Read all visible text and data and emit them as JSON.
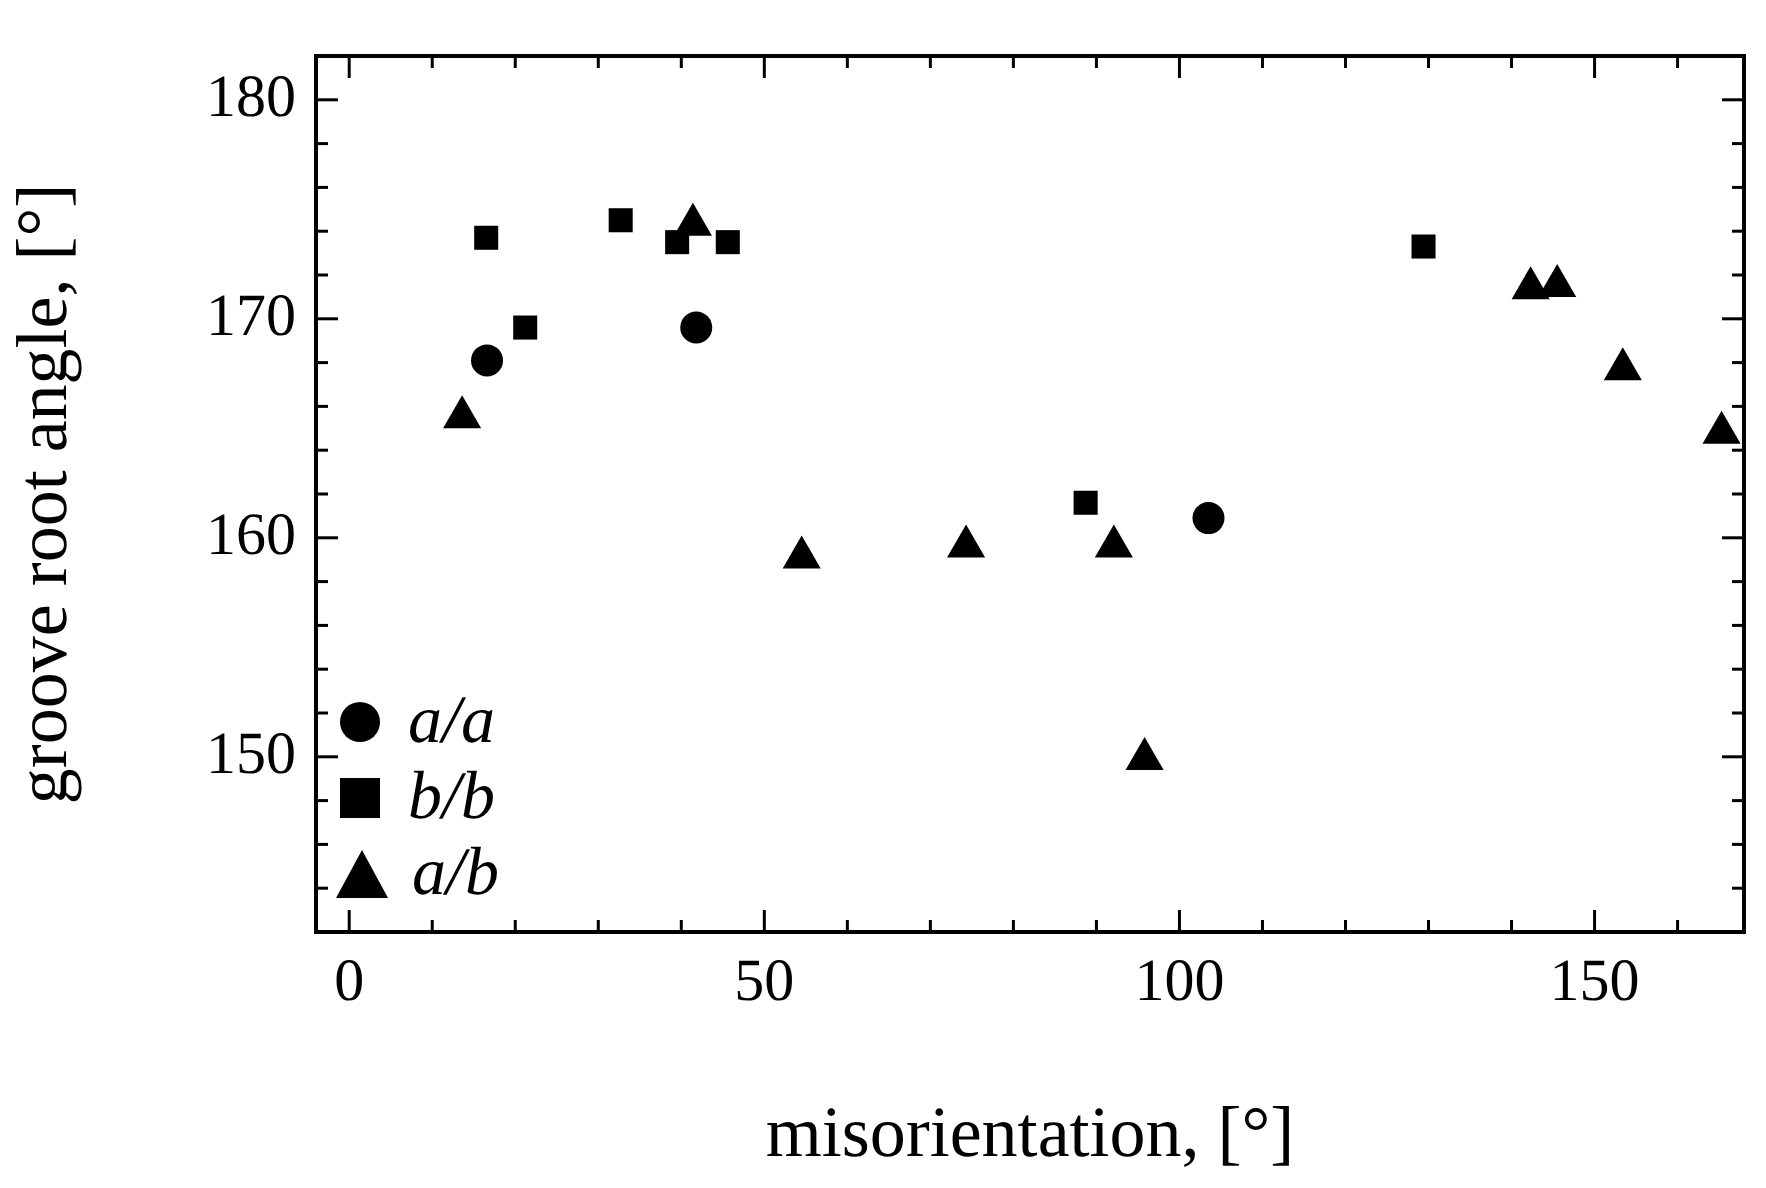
{
  "chart_data": {
    "type": "scatter",
    "xlabel": "misorientation, [°]",
    "ylabel": "groove root angle, [°]",
    "xlim": [
      -4,
      168
    ],
    "ylim": [
      142,
      182
    ],
    "xticks": [
      0,
      {
        "value": 10,
        "label": null
      },
      {
        "value": 20,
        "label": null
      },
      {
        "value": 30,
        "label": null
      },
      {
        "value": 40,
        "label": null
      },
      50,
      {
        "value": 60,
        "label": null
      },
      {
        "value": 70,
        "label": null
      },
      {
        "value": 80,
        "label": null
      },
      {
        "value": 90,
        "label": null
      },
      100,
      {
        "value": 110,
        "label": null
      },
      {
        "value": 120,
        "label": null
      },
      {
        "value": 130,
        "label": null
      },
      {
        "value": 140,
        "label": null
      },
      150,
      {
        "value": 160,
        "label": null
      }
    ],
    "yticks": [
      {
        "value": 144,
        "label": null
      },
      {
        "value": 146,
        "label": null
      },
      {
        "value": 148,
        "label": null
      },
      150,
      {
        "value": 152,
        "label": null
      },
      {
        "value": 154,
        "label": null
      },
      {
        "value": 156,
        "label": null
      },
      {
        "value": 158,
        "label": null
      },
      160,
      {
        "value": 162,
        "label": null
      },
      {
        "value": 164,
        "label": null
      },
      {
        "value": 166,
        "label": null
      },
      {
        "value": 168,
        "label": null
      },
      170,
      {
        "value": 172,
        "label": null
      },
      {
        "value": 174,
        "label": null
      },
      {
        "value": 176,
        "label": null
      },
      {
        "value": 178,
        "label": null
      },
      180
    ],
    "grid": false,
    "legend": "bottom left",
    "series": [
      {
        "name": "a/a",
        "color": "#000000",
        "marker": "circle",
        "x": [
          16.6,
          41.8,
          103.5
        ],
        "values": [
          168.1,
          169.6,
          160.9
        ]
      },
      {
        "name": "b/b",
        "color": "#000000",
        "marker": "square",
        "x": [
          16.5,
          21.2,
          32.7,
          39.5,
          45.6,
          88.7,
          129.4
        ],
        "values": [
          173.7,
          169.6,
          174.5,
          173.5,
          173.5,
          161.6,
          173.3
        ]
      },
      {
        "name": "a/b",
        "color": "#000000",
        "marker": "triangle",
        "x": [
          13.6,
          41.4,
          54.5,
          74.3,
          92.1,
          95.8,
          142.3,
          145.5,
          153.4,
          165.3
        ],
        "values": [
          165.5,
          174.3,
          159.1,
          159.6,
          159.6,
          149.9,
          171.4,
          171.5,
          167.7,
          164.8
        ]
      }
    ]
  }
}
